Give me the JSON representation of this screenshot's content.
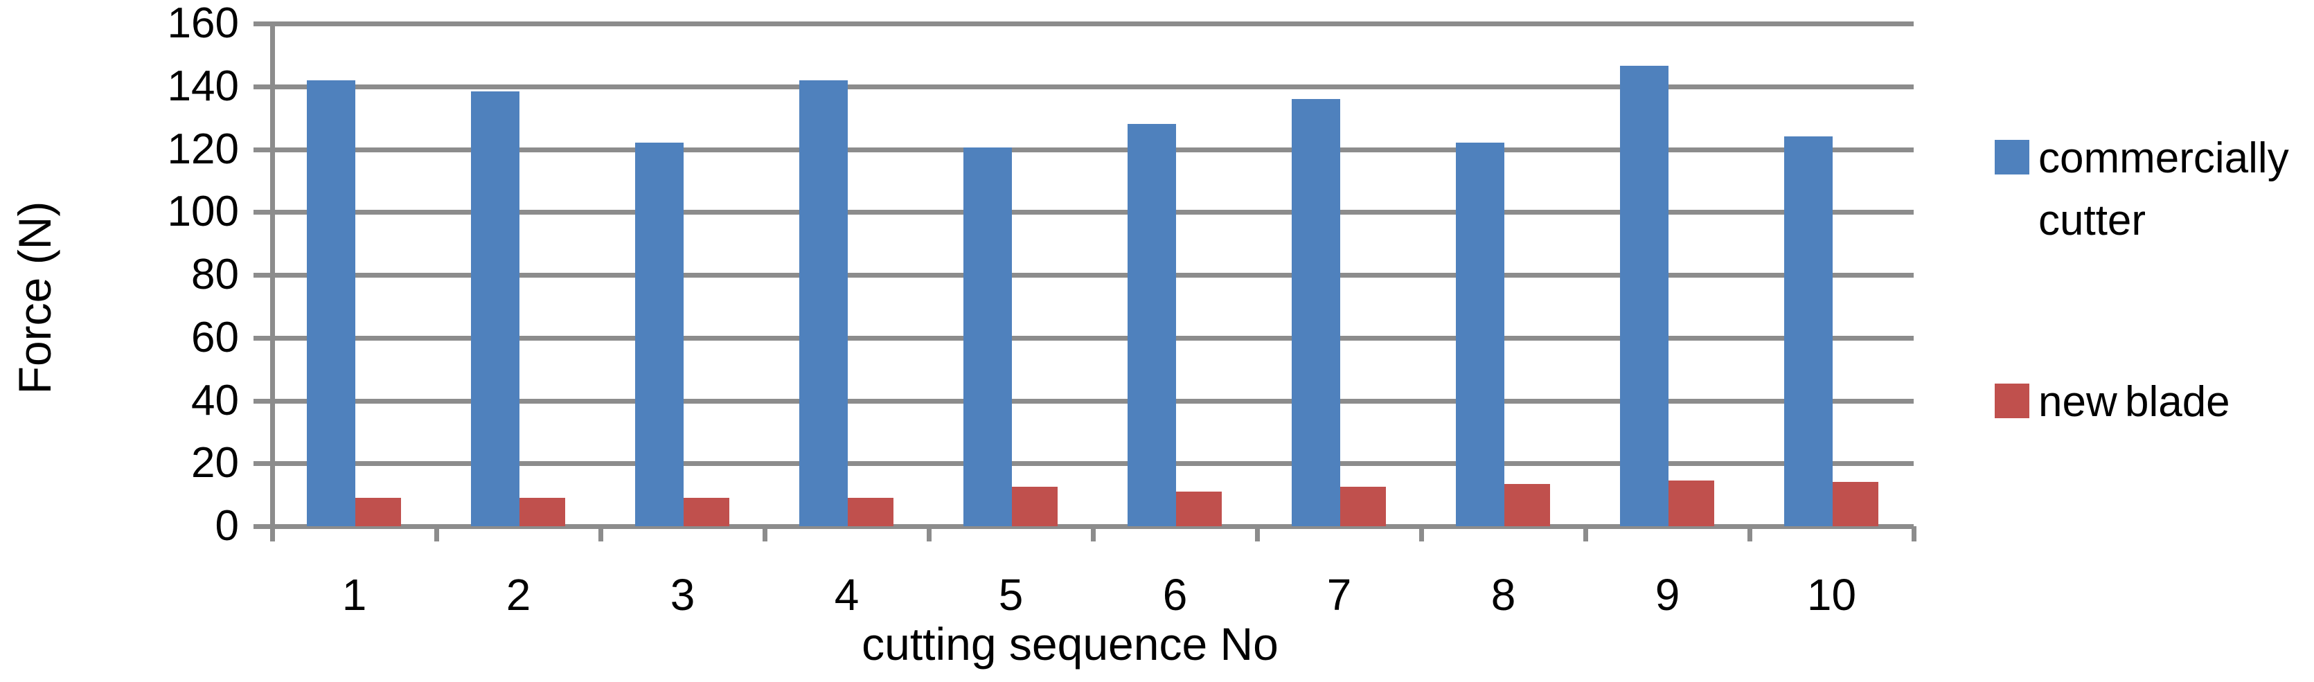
{
  "chart_data": {
    "type": "bar",
    "title": "",
    "xlabel": "cutting sequence No",
    "ylabel": "Force (N)",
    "categories": [
      "1",
      "2",
      "3",
      "4",
      "5",
      "6",
      "7",
      "8",
      "9",
      "10"
    ],
    "series": [
      {
        "name": "commercially cutter",
        "color": "#4F81BD",
        "values": [
          142,
          138.5,
          122,
          142,
          120.5,
          128,
          136,
          122,
          146.5,
          124
        ]
      },
      {
        "name": "new blade",
        "color": "#C0504D",
        "values": [
          9,
          9,
          9,
          9,
          12.5,
          11,
          12.5,
          13.5,
          14.5,
          14
        ]
      }
    ],
    "ylim": [
      0,
      160
    ],
    "ytick_step": 20,
    "grid": true,
    "gridline_color": "#8C8C8C",
    "legend_position": "right",
    "background_color": "#FFFFFF",
    "text_color": "#000000"
  }
}
